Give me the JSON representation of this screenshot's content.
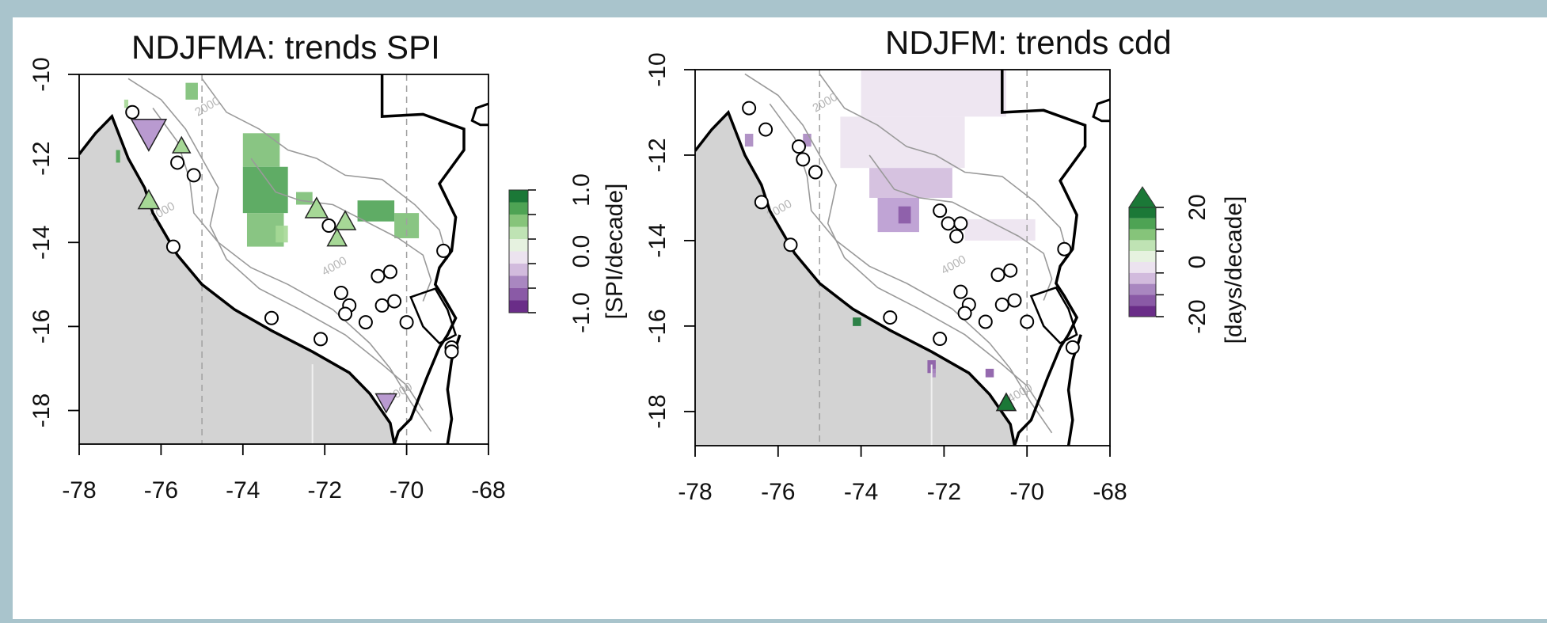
{
  "panels": [
    {
      "title": "NDJFMA: trends SPI",
      "x_ticks": [
        "-78",
        "-76",
        "-74",
        "-72",
        "-70",
        "-68"
      ],
      "y_ticks": [
        "-10",
        "-12",
        "-14",
        "-16",
        "-18"
      ],
      "colorbar": {
        "label": "[SPI/decade]",
        "ticks": [
          "1.0",
          "0.0",
          "-1.0"
        ],
        "colors": [
          "#1b7837",
          "#4ea354",
          "#86c47a",
          "#bfe3b4",
          "#e6f2e0",
          "#ece3ef",
          "#d2bbdd",
          "#a987c0",
          "#8a5aa6",
          "#6a2d88"
        ]
      },
      "contour_labels": [
        "2000",
        "2000",
        "4000",
        "4000"
      ],
      "stations": [
        {
          "lon": -76.7,
          "lat": -10.9
        },
        {
          "lon": -75.6,
          "lat": -12.1
        },
        {
          "lon": -75.2,
          "lat": -12.4
        },
        {
          "lon": -75.7,
          "lat": -14.1
        },
        {
          "lon": -71.9,
          "lat": -13.6
        },
        {
          "lon": -71.6,
          "lat": -15.2
        },
        {
          "lon": -71.4,
          "lat": -15.5
        },
        {
          "lon": -71.5,
          "lat": -15.7
        },
        {
          "lon": -70.7,
          "lat": -14.8
        },
        {
          "lon": -70.4,
          "lat": -14.7
        },
        {
          "lon": -70.6,
          "lat": -15.5
        },
        {
          "lon": -70.3,
          "lat": -15.4
        },
        {
          "lon": -71.0,
          "lat": -15.9
        },
        {
          "lon": -73.3,
          "lat": -15.8
        },
        {
          "lon": -72.1,
          "lat": -16.3
        },
        {
          "lon": -70.0,
          "lat": -15.9
        },
        {
          "lon": -69.1,
          "lat": -14.2
        },
        {
          "lon": -68.9,
          "lat": -16.5
        },
        {
          "lon": -68.9,
          "lat": -16.6
        }
      ],
      "triangles": [
        {
          "lon": -76.3,
          "lat": -11.4,
          "dir": "down",
          "size": 22,
          "color": "#b99ad0"
        },
        {
          "lon": -75.5,
          "lat": -11.7,
          "dir": "up",
          "size": 11,
          "color": "#a6d896"
        },
        {
          "lon": -76.3,
          "lat": -13.0,
          "dir": "up",
          "size": 13,
          "color": "#a6d896"
        },
        {
          "lon": -72.2,
          "lat": -13.2,
          "dir": "up",
          "size": 14,
          "color": "#a6d896"
        },
        {
          "lon": -71.5,
          "lat": -13.5,
          "dir": "up",
          "size": 13,
          "color": "#a6d896"
        },
        {
          "lon": -71.7,
          "lat": -13.9,
          "dir": "up",
          "size": 12,
          "color": "#a6d896"
        },
        {
          "lon": -70.5,
          "lat": -17.8,
          "dir": "down",
          "size": 13,
          "color": "#b99ad0"
        }
      ],
      "trend_patches": [
        {
          "lon0": -74.0,
          "lat0": -11.4,
          "lon1": -73.1,
          "lat1": -12.2,
          "color": "#7cbf76"
        },
        {
          "lon0": -74.0,
          "lat0": -12.2,
          "lon1": -72.9,
          "lat1": -13.3,
          "color": "#4ea354"
        },
        {
          "lon0": -73.9,
          "lat0": -13.3,
          "lon1": -73.0,
          "lat1": -14.1,
          "color": "#7cbf76"
        },
        {
          "lon0": -73.2,
          "lat0": -13.6,
          "lon1": -72.9,
          "lat1": -14.0,
          "color": "#a6d896"
        },
        {
          "lon0": -72.7,
          "lat0": -12.8,
          "lon1": -72.3,
          "lat1": -13.1,
          "color": "#7cbf76"
        },
        {
          "lon0": -71.2,
          "lat0": -13.0,
          "lon1": -70.3,
          "lat1": -13.5,
          "color": "#4ea354"
        },
        {
          "lon0": -70.3,
          "lat0": -13.3,
          "lon1": -69.7,
          "lat1": -13.9,
          "color": "#7cbf76"
        },
        {
          "lon0": -75.4,
          "lat0": -10.2,
          "lon1": -75.1,
          "lat1": -10.6,
          "color": "#7cbf76"
        },
        {
          "lon0": -77.1,
          "lat0": -11.8,
          "lon1": -77.0,
          "lat1": -12.1,
          "color": "#4ea354"
        },
        {
          "lon0": -76.9,
          "lat0": -10.6,
          "lon1": -76.8,
          "lat1": -10.8,
          "color": "#a6d896"
        }
      ]
    },
    {
      "title": "NDJFM: trends cdd",
      "x_ticks": [
        "-78",
        "-76",
        "-74",
        "-72",
        "-70",
        "-68"
      ],
      "y_ticks": [
        "-10",
        "-12",
        "-14",
        "-16",
        "-18"
      ],
      "colorbar": {
        "label": "[days/decade]",
        "ticks": [
          "20",
          "0",
          "-20"
        ],
        "colors": [
          "#1b7837",
          "#4ea354",
          "#86c47a",
          "#bfe3b4",
          "#e6f2e0",
          "#ece3ef",
          "#d2bbdd",
          "#a987c0",
          "#8a5aa6",
          "#6a2d88"
        ]
      },
      "contour_labels": [
        "2000",
        "2000",
        "4000",
        "4000"
      ],
      "stations": [
        {
          "lon": -76.7,
          "lat": -10.9
        },
        {
          "lon": -76.3,
          "lat": -11.4
        },
        {
          "lon": -75.5,
          "lat": -11.8
        },
        {
          "lon": -75.4,
          "lat": -12.1
        },
        {
          "lon": -75.1,
          "lat": -12.4
        },
        {
          "lon": -76.4,
          "lat": -13.1
        },
        {
          "lon": -75.7,
          "lat": -14.1
        },
        {
          "lon": -72.1,
          "lat": -13.3
        },
        {
          "lon": -71.9,
          "lat": -13.6
        },
        {
          "lon": -71.6,
          "lat": -13.6
        },
        {
          "lon": -71.7,
          "lat": -13.9
        },
        {
          "lon": -71.6,
          "lat": -15.2
        },
        {
          "lon": -71.4,
          "lat": -15.5
        },
        {
          "lon": -71.5,
          "lat": -15.7
        },
        {
          "lon": -70.7,
          "lat": -14.8
        },
        {
          "lon": -70.4,
          "lat": -14.7
        },
        {
          "lon": -70.6,
          "lat": -15.5
        },
        {
          "lon": -70.3,
          "lat": -15.4
        },
        {
          "lon": -71.0,
          "lat": -15.9
        },
        {
          "lon": -73.3,
          "lat": -15.8
        },
        {
          "lon": -72.1,
          "lat": -16.3
        },
        {
          "lon": -70.0,
          "lat": -15.9
        },
        {
          "lon": -69.1,
          "lat": -14.2
        },
        {
          "lon": -68.9,
          "lat": -16.5
        }
      ],
      "triangles": [
        {
          "lon": -70.5,
          "lat": -17.8,
          "dir": "up",
          "size": 12,
          "color": "#1b7837"
        }
      ],
      "trend_patches": [
        {
          "lon0": -74.0,
          "lat0": -10.0,
          "lon1": -70.5,
          "lat1": -11.1,
          "color": "#ece3ef"
        },
        {
          "lon0": -74.5,
          "lat0": -11.1,
          "lon1": -71.5,
          "lat1": -12.3,
          "color": "#ece3ef"
        },
        {
          "lon0": -73.8,
          "lat0": -12.3,
          "lon1": -71.8,
          "lat1": -13.0,
          "color": "#d2bbdd"
        },
        {
          "lon0": -73.6,
          "lat0": -13.0,
          "lon1": -72.6,
          "lat1": -13.8,
          "color": "#b99ad0"
        },
        {
          "lon0": -73.1,
          "lat0": -13.2,
          "lon1": -72.8,
          "lat1": -13.6,
          "color": "#8a5aa6"
        },
        {
          "lon0": -71.5,
          "lat0": -13.5,
          "lon1": -69.8,
          "lat1": -14.0,
          "color": "#ece3ef"
        },
        {
          "lon0": -76.8,
          "lat0": -11.5,
          "lon1": -76.6,
          "lat1": -11.8,
          "color": "#a987c0"
        },
        {
          "lon0": -75.4,
          "lat0": -11.5,
          "lon1": -75.2,
          "lat1": -11.8,
          "color": "#a987c0"
        },
        {
          "lon0": -72.4,
          "lat0": -16.8,
          "lon1": -72.2,
          "lat1": -17.1,
          "color": "#8a5aa6"
        },
        {
          "lon0": -71.0,
          "lat0": -17.0,
          "lon1": -70.8,
          "lat1": -17.2,
          "color": "#8a5aa6"
        },
        {
          "lon0": -74.2,
          "lat0": -15.8,
          "lon1": -74.0,
          "lat1": -16.0,
          "color": "#1b7837"
        },
        {
          "lon0": -72.3,
          "lat0": -17.0,
          "lon1": -72.2,
          "lat1": -17.2,
          "color": "#a987c0"
        }
      ]
    }
  ]
}
